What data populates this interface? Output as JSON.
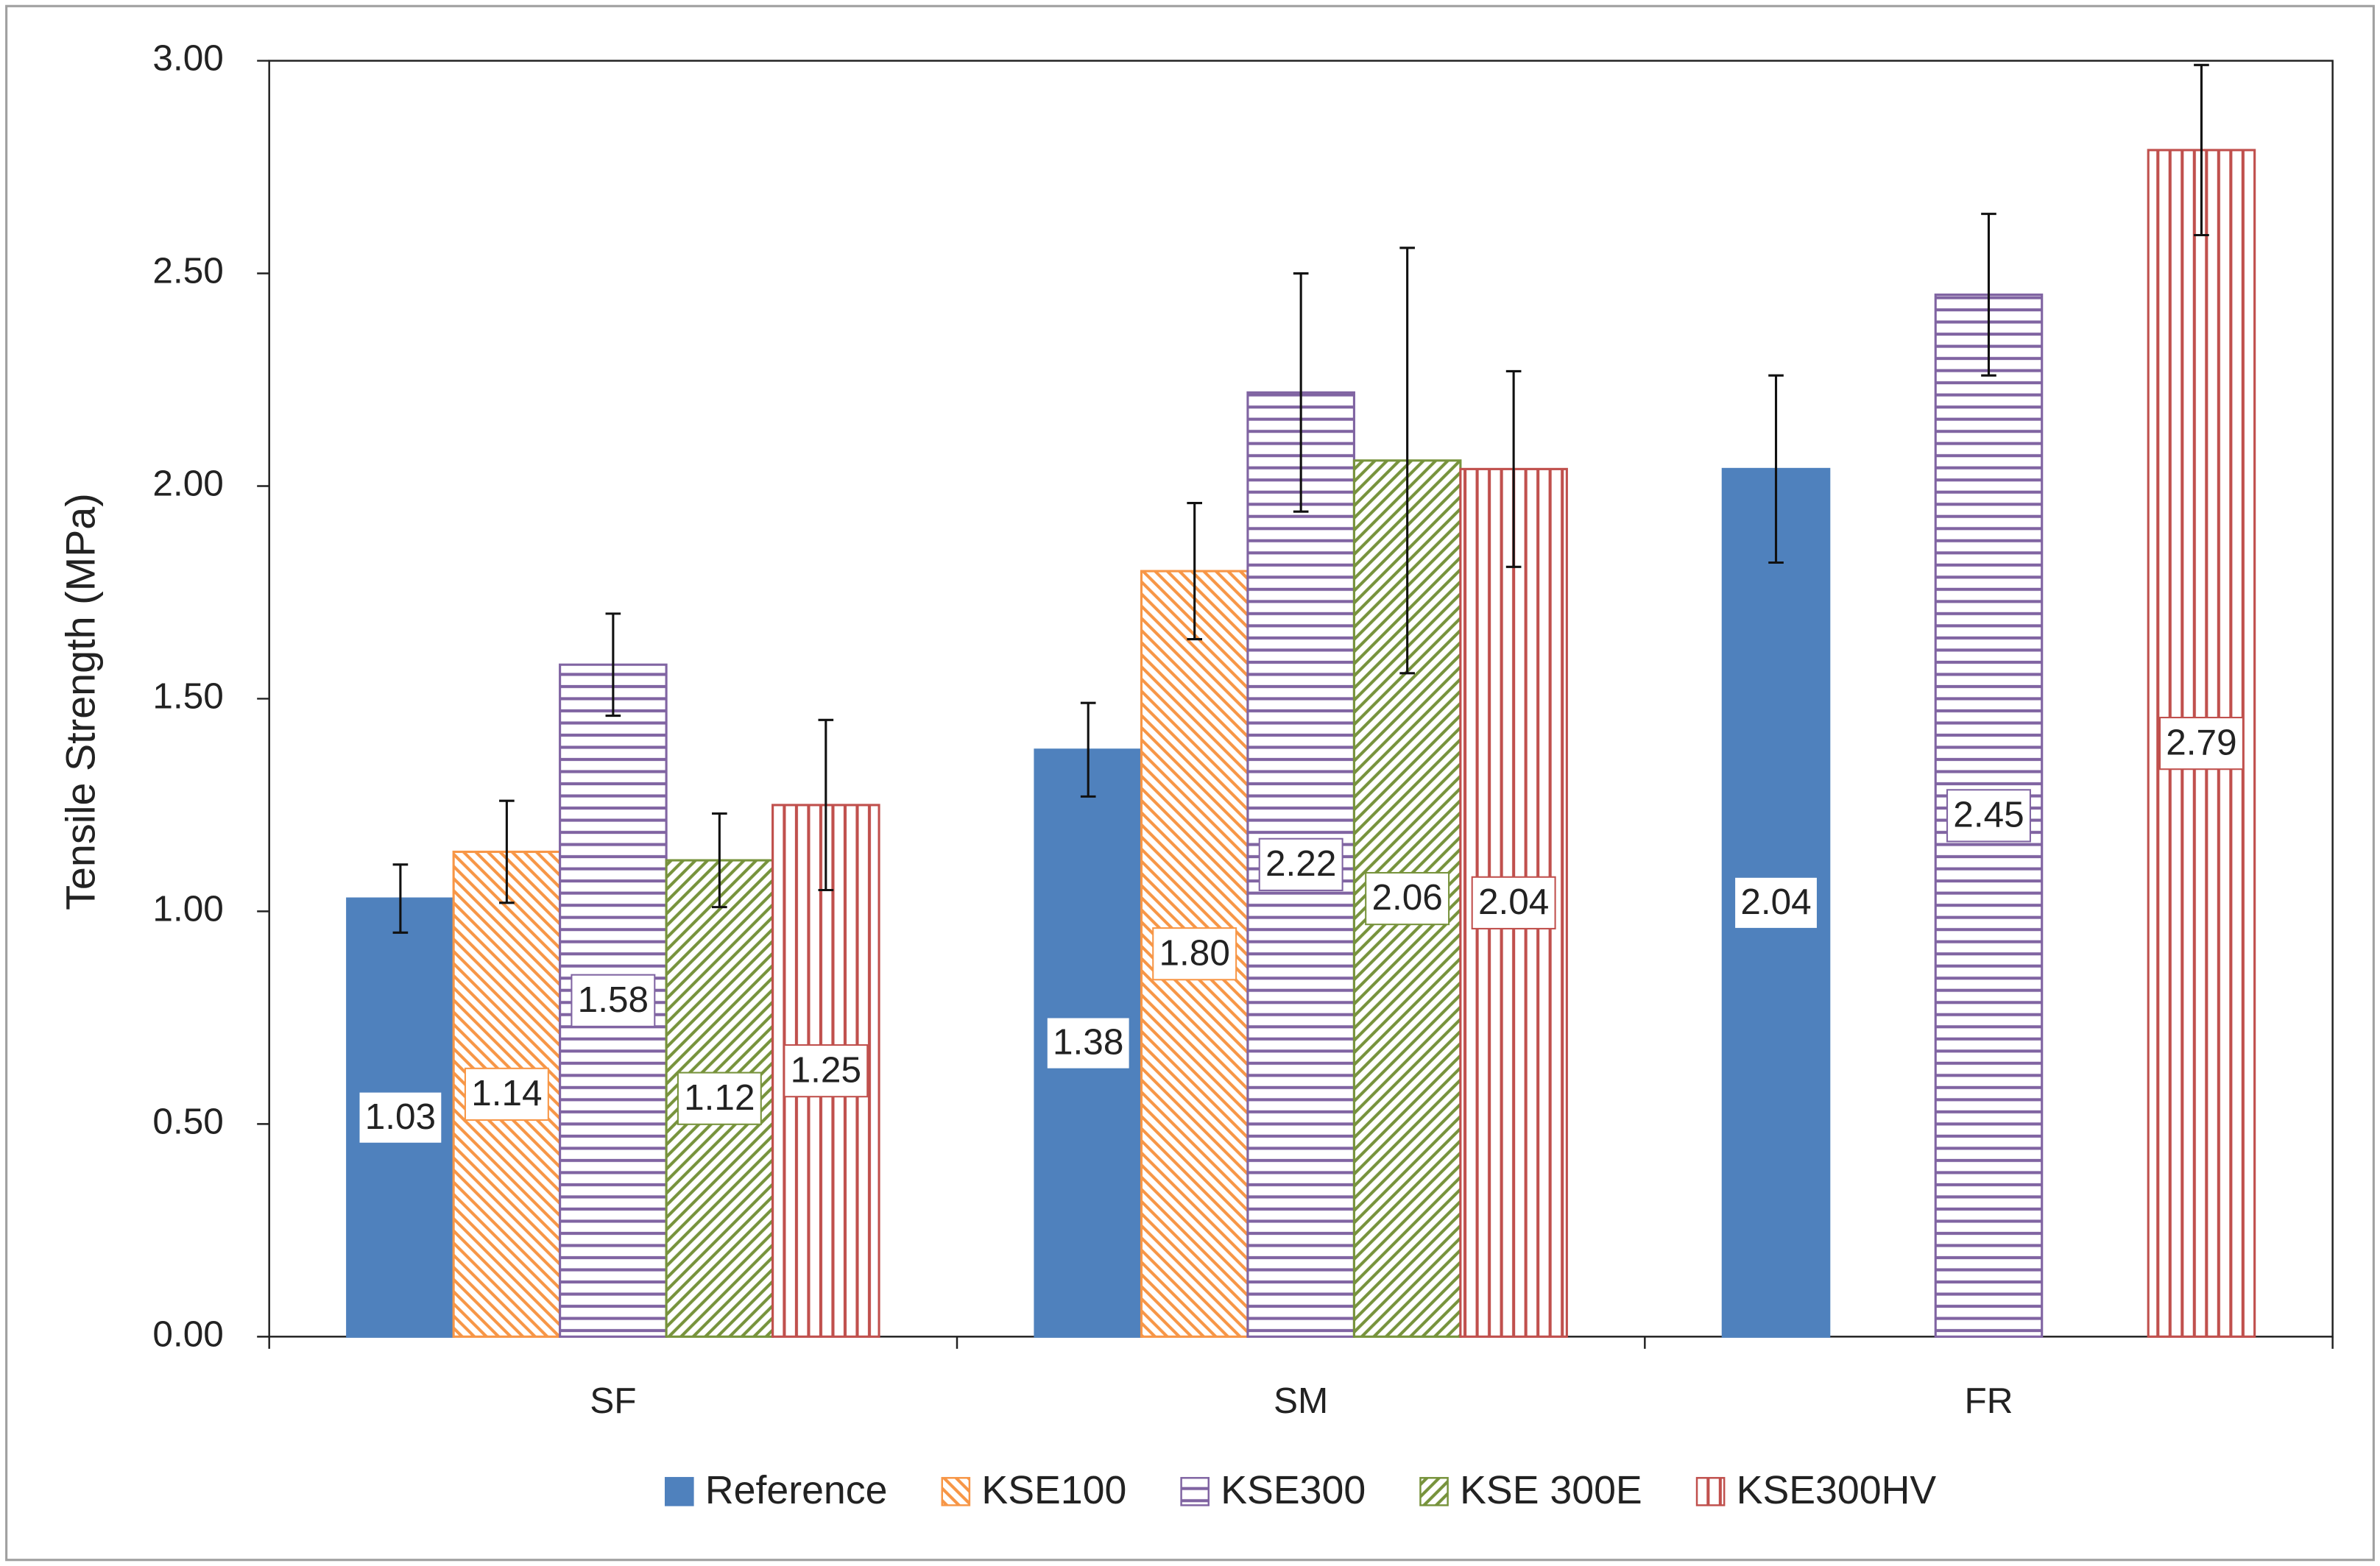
{
  "chart_data": {
    "type": "bar",
    "ylabel": "Tensile Strength (MPa)",
    "categories": [
      "SF",
      "SM",
      "FR"
    ],
    "series": [
      {
        "name": "Reference",
        "color": "#4f81bd",
        "pattern": "solid",
        "values": [
          1.03,
          1.38,
          2.04
        ],
        "errors": [
          0.08,
          0.11,
          0.22
        ],
        "value_labels": [
          "1.03",
          "1.38",
          "2.04"
        ]
      },
      {
        "name": "KSE100",
        "color": "#f79646",
        "pattern": "diagonal-down",
        "values": [
          1.14,
          1.8,
          null
        ],
        "errors": [
          0.12,
          0.16,
          null
        ],
        "value_labels": [
          "1.14",
          "1.80",
          null
        ]
      },
      {
        "name": "KSE300",
        "color": "#8064a2",
        "pattern": "horizontal",
        "values": [
          1.58,
          2.22,
          2.45
        ],
        "errors": [
          0.12,
          0.28,
          0.19
        ],
        "value_labels": [
          "1.58",
          "2.22",
          "2.45"
        ]
      },
      {
        "name": "KSE 300E",
        "color": "#77933c",
        "pattern": "diagonal-up",
        "values": [
          1.12,
          2.06,
          null
        ],
        "errors": [
          0.11,
          0.5,
          null
        ],
        "value_labels": [
          "1.12",
          "2.06",
          null
        ]
      },
      {
        "name": "KSE300HV",
        "color": "#c0504d",
        "pattern": "vertical",
        "values": [
          1.25,
          2.04,
          2.79
        ],
        "errors": [
          0.2,
          0.23,
          0.2
        ],
        "value_labels": [
          "1.25",
          "2.04",
          "2.79"
        ]
      }
    ],
    "ylim": [
      0,
      3
    ],
    "yticks": [
      {
        "value": 0,
        "label": "0.00"
      },
      {
        "value": 0.5,
        "label": "0.50"
      },
      {
        "value": 1,
        "label": "1.00"
      },
      {
        "value": 1.5,
        "label": "1.50"
      },
      {
        "value": 2,
        "label": "2.00"
      },
      {
        "value": 2.5,
        "label": "2.50"
      },
      {
        "value": 3,
        "label": "3.00"
      }
    ],
    "grid": false,
    "legend": "bottom"
  }
}
